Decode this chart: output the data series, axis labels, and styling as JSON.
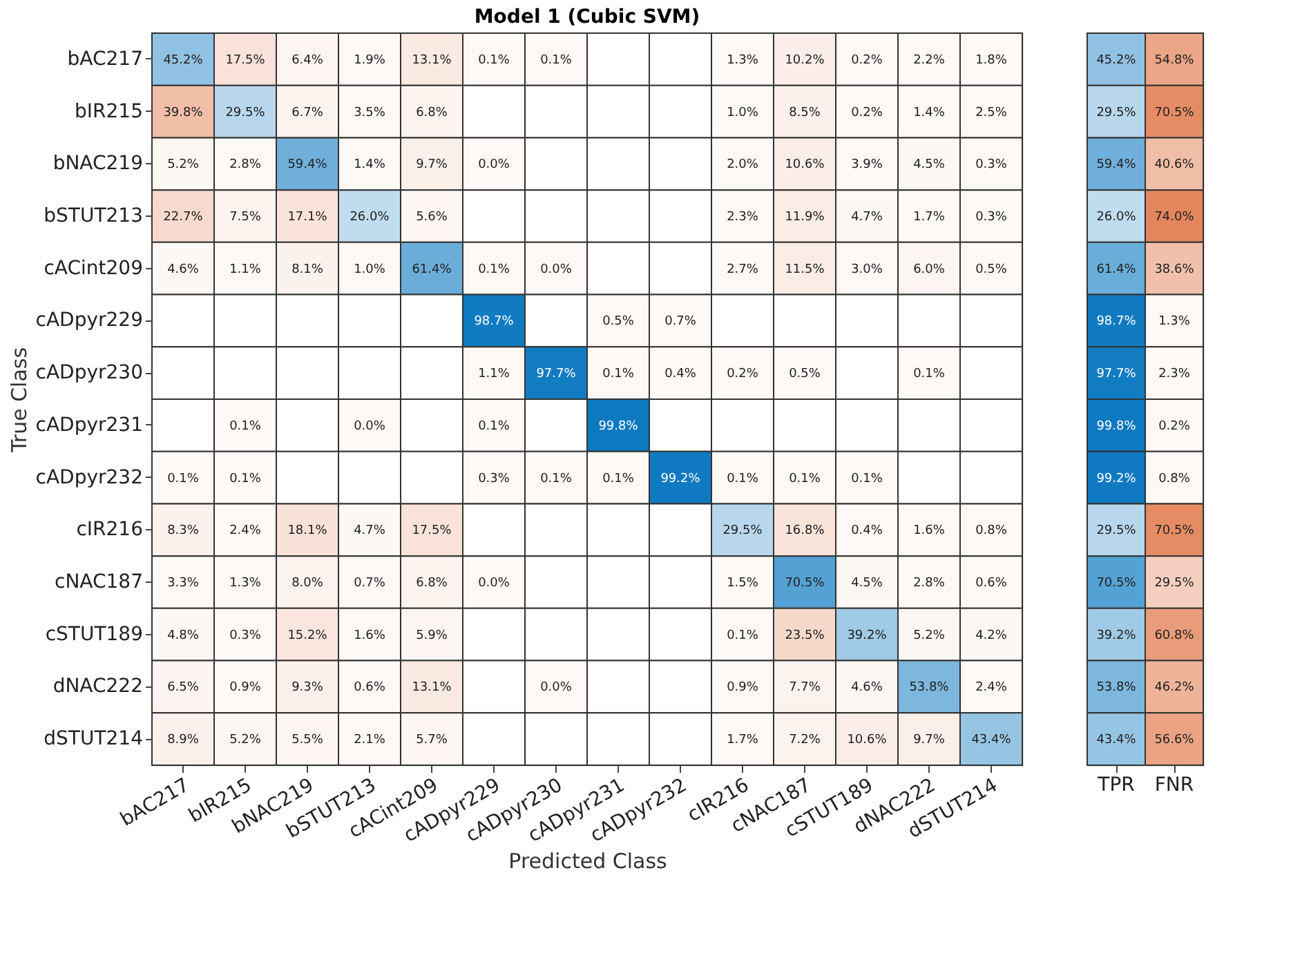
{
  "chart_data": [
    {
      "type": "heatmap",
      "title": "Model 1 (Cubic SVM)",
      "xlabel": "Predicted Class",
      "ylabel": "True Class",
      "colors": [
        "#0072bd",
        "#d95319"
      ],
      "categories": [
        "bAC217",
        "bIR215",
        "bNAC219",
        "bSTUT213",
        "cACint209",
        "cADpyr229",
        "cADpyr230",
        "cADpyr231",
        "cADpyr232",
        "cIR216",
        "cNAC187",
        "cSTUT189",
        "dNAC222",
        "dSTUT214"
      ],
      "y_categories": [
        "bAC217",
        "bIR215",
        "bNAC219",
        "bSTUT213",
        "cACint209",
        "cADpyr229",
        "cADpyr230",
        "cADpyr231",
        "cADpyr232",
        "cIR216",
        "cNAC187",
        "cSTUT189",
        "dNAC222",
        "dSTUT214"
      ],
      "cells": [
        [
          45.2,
          17.5,
          6.4,
          1.9,
          13.1,
          0.1,
          0.1,
          null,
          null,
          1.3,
          10.2,
          0.2,
          2.2,
          1.8
        ],
        [
          39.8,
          29.5,
          6.7,
          3.5,
          6.8,
          null,
          null,
          null,
          null,
          1.0,
          8.5,
          0.2,
          1.4,
          2.5
        ],
        [
          5.2,
          2.8,
          59.4,
          1.4,
          9.7,
          0.0,
          null,
          null,
          null,
          2.0,
          10.6,
          3.9,
          4.5,
          0.3
        ],
        [
          22.7,
          7.5,
          17.1,
          26.0,
          5.6,
          null,
          null,
          null,
          null,
          2.3,
          11.9,
          4.7,
          1.7,
          0.3
        ],
        [
          4.6,
          1.1,
          8.1,
          1.0,
          61.4,
          0.1,
          0.0,
          null,
          null,
          2.7,
          11.5,
          3.0,
          6.0,
          0.5
        ],
        [
          null,
          null,
          null,
          null,
          null,
          98.7,
          null,
          0.5,
          0.7,
          null,
          null,
          null,
          null,
          null
        ],
        [
          null,
          null,
          null,
          null,
          null,
          1.1,
          97.7,
          0.1,
          0.4,
          0.2,
          0.5,
          null,
          0.1,
          null
        ],
        [
          null,
          0.1,
          null,
          0.0,
          null,
          0.1,
          null,
          99.8,
          null,
          null,
          null,
          null,
          null,
          null
        ],
        [
          0.1,
          0.1,
          null,
          null,
          null,
          0.3,
          0.1,
          0.1,
          99.2,
          0.1,
          0.1,
          0.1,
          null,
          null
        ],
        [
          8.3,
          2.4,
          18.1,
          4.7,
          17.5,
          null,
          null,
          null,
          null,
          29.5,
          16.8,
          0.4,
          1.6,
          0.8
        ],
        [
          3.3,
          1.3,
          8.0,
          0.7,
          6.8,
          0.0,
          null,
          null,
          null,
          1.5,
          70.5,
          4.5,
          2.8,
          0.6
        ],
        [
          4.8,
          0.3,
          15.2,
          1.6,
          5.9,
          null,
          null,
          null,
          null,
          0.1,
          23.5,
          39.2,
          5.2,
          4.2
        ],
        [
          6.5,
          0.9,
          9.3,
          0.6,
          13.1,
          null,
          0.0,
          null,
          null,
          0.9,
          7.7,
          4.6,
          53.8,
          2.4
        ],
        [
          8.9,
          5.2,
          5.5,
          2.1,
          5.7,
          null,
          null,
          null,
          null,
          1.7,
          7.2,
          10.6,
          9.7,
          43.4
        ]
      ],
      "cell_labels": [
        [
          "45.2%",
          "17.5%",
          "6.4%",
          "1.9%",
          "13.1%",
          "0.1%",
          "0.1%",
          null,
          null,
          "1.3%",
          "10.2%",
          "0.2%",
          "2.2%",
          "1.8%"
        ],
        [
          "39.8%",
          "29.5%",
          "6.7%",
          "3.5%",
          "6.8%",
          null,
          null,
          null,
          null,
          "1.0%",
          "8.5%",
          "0.2%",
          "1.4%",
          "2.5%"
        ],
        [
          "5.2%",
          "2.8%",
          "59.4%",
          "1.4%",
          "9.7%",
          "0.0%",
          null,
          null,
          null,
          "2.0%",
          "10.6%",
          "3.9%",
          "4.5%",
          "0.3%"
        ],
        [
          "22.7%",
          "7.5%",
          "17.1%",
          "26.0%",
          "5.6%",
          null,
          null,
          null,
          null,
          "2.3%",
          "11.9%",
          "4.7%",
          "1.7%",
          "0.3%"
        ],
        [
          "4.6%",
          "1.1%",
          "8.1%",
          "1.0%",
          "61.4%",
          "0.1%",
          "0.0%",
          null,
          null,
          "2.7%",
          "11.5%",
          "3.0%",
          "6.0%",
          "0.5%"
        ],
        [
          null,
          null,
          null,
          null,
          null,
          "98.7%",
          null,
          "0.5%",
          "0.7%",
          null,
          null,
          null,
          null,
          null
        ],
        [
          null,
          null,
          null,
          null,
          null,
          "1.1%",
          "97.7%",
          "0.1%",
          "0.4%",
          "0.2%",
          "0.5%",
          null,
          "0.1%",
          null
        ],
        [
          null,
          "0.1%",
          null,
          "0.0%",
          null,
          "0.1%",
          null,
          "99.8%",
          null,
          null,
          null,
          null,
          null,
          null
        ],
        [
          "0.1%",
          "0.1%",
          null,
          null,
          null,
          "0.3%",
          "0.1%",
          "0.1%",
          "99.2%",
          "0.1%",
          "0.1%",
          "0.1%",
          null,
          null
        ],
        [
          "8.3%",
          "2.4%",
          "18.1%",
          "4.7%",
          "17.5%",
          null,
          null,
          null,
          null,
          "29.5%",
          "16.8%",
          "0.4%",
          "1.6%",
          "0.8%"
        ],
        [
          "3.3%",
          "1.3%",
          "8.0%",
          "0.7%",
          "6.8%",
          "0.0%",
          null,
          null,
          null,
          "1.5%",
          "70.5%",
          "4.5%",
          "2.8%",
          "0.6%"
        ],
        [
          "4.8%",
          "0.3%",
          "15.2%",
          "1.6%",
          "5.9%",
          null,
          null,
          null,
          null,
          "0.1%",
          "23.5%",
          "39.2%",
          "5.2%",
          "4.2%"
        ],
        [
          "6.5%",
          "0.9%",
          "9.3%",
          "0.6%",
          "13.1%",
          null,
          "0.0%",
          null,
          null,
          "0.9%",
          "7.7%",
          "4.6%",
          "53.8%",
          "2.4%"
        ],
        [
          "8.9%",
          "5.2%",
          "5.5%",
          "2.1%",
          "5.7%",
          null,
          null,
          null,
          null,
          "1.7%",
          "7.2%",
          "10.6%",
          "9.7%",
          "43.4%"
        ]
      ]
    },
    {
      "type": "heatmap",
      "tick_labels": "x",
      "colors": [
        "#0072bd",
        "#d95319"
      ],
      "categories": [
        "TPR",
        "FNR"
      ],
      "y_categories": [
        null,
        null,
        null,
        null,
        null,
        null,
        null,
        null,
        null,
        null,
        null,
        null,
        null,
        null
      ],
      "cells": [
        [
          45.2,
          54.8
        ],
        [
          29.5,
          70.5
        ],
        [
          59.4,
          40.6
        ],
        [
          26.0,
          74.0
        ],
        [
          61.4,
          38.6
        ],
        [
          98.7,
          1.3
        ],
        [
          97.7,
          2.3
        ],
        [
          99.8,
          0.2
        ],
        [
          99.2,
          0.8
        ],
        [
          29.5,
          70.5
        ],
        [
          70.5,
          29.5
        ],
        [
          39.2,
          60.8
        ],
        [
          53.8,
          46.2
        ],
        [
          43.4,
          56.6
        ]
      ],
      "cell_labels": [
        [
          "45.2%",
          "54.8%"
        ],
        [
          "29.5%",
          "70.5%"
        ],
        [
          "59.4%",
          "40.6%"
        ],
        [
          "26.0%",
          "74.0%"
        ],
        [
          "61.4%",
          "38.6%"
        ],
        [
          "98.7%",
          "1.3%"
        ],
        [
          "97.7%",
          "2.3%"
        ],
        [
          "99.8%",
          "0.2%"
        ],
        [
          "99.2%",
          "0.8%"
        ],
        [
          "29.5%",
          "70.5%"
        ],
        [
          "70.5%",
          "29.5%"
        ],
        [
          "39.2%",
          "60.8%"
        ],
        [
          "53.8%",
          "46.2%"
        ],
        [
          "43.4%",
          "56.6%"
        ]
      ]
    }
  ]
}
